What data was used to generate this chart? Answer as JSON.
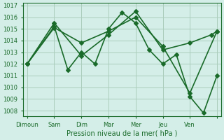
{
  "title": "",
  "xlabel": "Pression niveau de la mer( hPa )",
  "ylabel": "",
  "background_color": "#d4eee8",
  "grid_color": "#aaccbb",
  "line_color": "#1a6b2a",
  "marker": "D",
  "markersize": 3,
  "linewidth": 1.2,
  "ylim": [
    1007.5,
    1017.2
  ],
  "yticks": [
    1008,
    1009,
    1010,
    1011,
    1012,
    1013,
    1014,
    1015,
    1016,
    1017
  ],
  "series": [
    {
      "x": [
        0,
        1.0,
        1.5,
        2.0,
        2.5,
        3.0,
        3.5,
        4.0,
        4.5,
        5.0,
        5.5,
        6.0,
        6.5,
        7.0
      ],
      "y": [
        1012.0,
        1015.2,
        1011.5,
        1013.0,
        1012.0,
        1015.0,
        1016.4,
        1015.5,
        1013.2,
        1012.0,
        1012.8,
        1009.2,
        1007.8,
        1011.0
      ]
    },
    {
      "x": [
        0,
        1.0,
        2.0,
        3.0,
        4.0,
        5.0,
        6.0,
        6.8,
        7.0
      ],
      "y": [
        1012.0,
        1015.5,
        1012.7,
        1014.5,
        1016.5,
        1013.2,
        1013.8,
        1014.5,
        1014.8
      ]
    },
    {
      "x": [
        0,
        1.0,
        2.0,
        3.0,
        4.0,
        5.0,
        6.0,
        7.0
      ],
      "y": [
        1012.0,
        1015.1,
        1013.8,
        1014.8,
        1016.0,
        1013.5,
        1009.5,
        1014.8
      ]
    }
  ],
  "xtick_positions": [
    0,
    1.0,
    2.0,
    3.0,
    4.0,
    5.0,
    6.0,
    7.0
  ],
  "xtick_labels": [
    "Dimoun",
    "Sam",
    "Dim",
    "Mar",
    "Mer",
    "Jeu",
    "Ven",
    ""
  ]
}
